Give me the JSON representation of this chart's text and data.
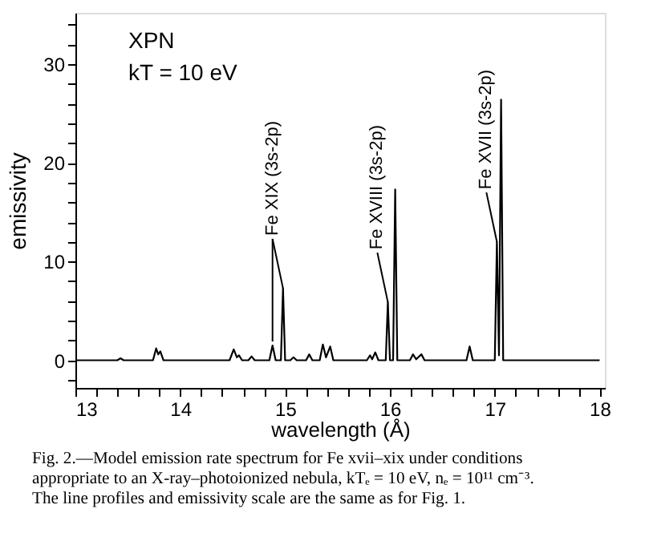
{
  "chart_data": {
    "type": "line",
    "xlabel": "wavelength (Å)",
    "ylabel": "emissivity",
    "x": [
      13.0,
      13.4,
      13.43,
      13.46,
      13.74,
      13.77,
      13.79,
      13.81,
      13.84,
      14.47,
      14.51,
      14.54,
      14.56,
      14.59,
      14.65,
      14.68,
      14.71,
      14.85,
      14.88,
      14.91,
      14.96,
      14.98,
      15.0,
      15.05,
      15.08,
      15.11,
      15.2,
      15.23,
      15.26,
      15.33,
      15.36,
      15.39,
      15.43,
      15.46,
      15.78,
      15.81,
      15.83,
      15.86,
      15.89,
      15.96,
      15.98,
      16.0,
      16.03,
      16.05,
      16.07,
      16.19,
      16.22,
      16.25,
      16.3,
      16.33,
      16.73,
      16.76,
      16.79,
      17.0,
      17.02,
      17.04,
      17.06,
      17.08,
      18.0
    ],
    "series": [
      {
        "color": "#000000",
        "values": [
          0,
          0,
          0.2,
          0,
          0,
          1.2,
          0.6,
          0.9,
          0,
          0,
          1.1,
          0.3,
          0.5,
          0,
          0,
          0.4,
          0,
          0,
          1.5,
          0,
          0,
          7.3,
          0,
          0,
          0.3,
          0,
          0,
          0.6,
          0,
          0,
          1.6,
          0.3,
          1.4,
          0,
          0,
          0.5,
          0.1,
          0.8,
          0,
          0,
          5.9,
          0,
          0,
          17.3,
          0,
          0,
          0.6,
          0.1,
          0.6,
          0,
          0,
          1.4,
          0,
          0,
          12.0,
          0.5,
          26.4,
          0,
          0
        ]
      }
    ],
    "xlim": [
      13,
      18.05
    ],
    "xticks": [
      13,
      {
        "value": 13.2,
        "label": null
      },
      {
        "value": 13.4,
        "label": null
      },
      {
        "value": 13.6,
        "label": null
      },
      {
        "value": 13.8,
        "label": null
      },
      14,
      {
        "value": 14.2,
        "label": null
      },
      {
        "value": 14.4,
        "label": null
      },
      {
        "value": 14.6,
        "label": null
      },
      {
        "value": 14.8,
        "label": null
      },
      15,
      {
        "value": 15.2,
        "label": null
      },
      {
        "value": 15.4,
        "label": null
      },
      {
        "value": 15.6,
        "label": null
      },
      {
        "value": 15.8,
        "label": null
      },
      16,
      {
        "value": 16.2,
        "label": null
      },
      {
        "value": 16.4,
        "label": null
      },
      {
        "value": 16.6,
        "label": null
      },
      {
        "value": 16.8,
        "label": null
      },
      17,
      {
        "value": 17.2,
        "label": null
      },
      {
        "value": 17.4,
        "label": null
      },
      {
        "value": 17.6,
        "label": null
      },
      {
        "value": 17.8,
        "label": null
      },
      18
    ],
    "ylim": [
      -2.8,
      35.2
    ],
    "yticks": [
      {
        "value": -2,
        "label": null
      },
      0,
      {
        "value": 2,
        "label": null
      },
      {
        "value": 4,
        "label": null
      },
      {
        "value": 6,
        "label": null
      },
      {
        "value": 8,
        "label": null
      },
      10,
      {
        "value": 12,
        "label": null
      },
      {
        "value": 14,
        "label": null
      },
      {
        "value": 16,
        "label": null
      },
      {
        "value": 18,
        "label": null
      },
      20,
      {
        "value": 22,
        "label": null
      },
      {
        "value": 24,
        "label": null
      },
      {
        "value": 26,
        "label": null
      },
      {
        "value": 28,
        "label": null
      },
      30,
      {
        "value": 32,
        "label": null
      },
      {
        "value": 34,
        "label": null
      }
    ],
    "grid": false,
    "marker": "none",
    "line_style": "solid",
    "annotations": [
      "XPN",
      "kT = 10 eV",
      {
        "text": "Fe XIX (3s-2p)",
        "x": 14.98,
        "y": 7.3
      },
      {
        "text": "Fe XVIII (3s-2p)",
        "x": 15.98,
        "y": 5.9
      },
      {
        "text": "Fe XVII (3s-2p)",
        "x": 17.02,
        "y": 12.0
      },
      "Fig. 2.—Model emission rate spectrum for Fe xvii–xix under conditions",
      "appropriate to an X-ray–photoionized nebula, kTₑ = 10 eV, nₑ = 10¹¹ cm⁻³.",
      "The line profiles and emissivity scale are the same as for Fig. 1."
    ]
  }
}
